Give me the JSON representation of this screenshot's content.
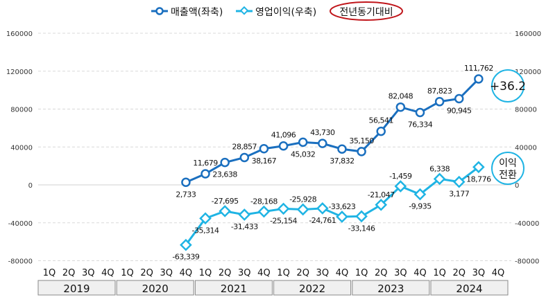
{
  "chart_data": {
    "type": "line",
    "legend": {
      "placement": "top",
      "items": [
        "매출액(좌축)",
        "영업이익(우축)",
        "전년동기대비"
      ]
    },
    "categories": [
      "1Q",
      "2Q",
      "3Q",
      "4Q",
      "1Q",
      "2Q",
      "3Q",
      "4Q",
      "1Q",
      "2Q",
      "3Q",
      "4Q",
      "1Q",
      "2Q",
      "3Q",
      "4Q",
      "1Q",
      "2Q",
      "3Q",
      "4Q",
      "1Q",
      "2Q",
      "3Q",
      "4Q"
    ],
    "years": [
      "2019",
      "2020",
      "2021",
      "2022",
      "2023",
      "2024"
    ],
    "y_left": {
      "ticks": [
        "160000",
        "120000",
        "80000",
        "40000",
        "0",
        "-40000",
        "-80000"
      ],
      "range": [
        -80000,
        160000
      ]
    },
    "y_right": {
      "ticks": [
        "160000",
        "120000",
        "80000",
        "40000",
        "0",
        "-40000",
        "-80000"
      ],
      "range": [
        -80000,
        160000
      ]
    },
    "grid": true,
    "series": [
      {
        "name": "매출액(좌축)",
        "color": "#1a6fbf",
        "marker": "circle",
        "values": [
          null,
          null,
          null,
          null,
          null,
          null,
          null,
          2733,
          11679,
          23638,
          28857,
          38167,
          41096,
          45032,
          43730,
          37832,
          35150,
          56541,
          82048,
          76334,
          87823,
          90945,
          111762,
          null
        ],
        "labels": [
          null,
          null,
          null,
          null,
          null,
          null,
          null,
          "2,733",
          "11,679",
          "23,638",
          "28,857",
          "38,167",
          "41,096",
          "45,032",
          "43,730",
          "37,832",
          "35,150",
          "56,541",
          "82,048",
          "76,334",
          "87,823",
          "90,945",
          "111,762",
          null
        ]
      },
      {
        "name": "영업이익(우축)",
        "color": "#1fb4e4",
        "marker": "diamond",
        "values": [
          null,
          null,
          null,
          null,
          null,
          null,
          null,
          -63339,
          -35314,
          -27695,
          -31433,
          -28168,
          -25154,
          -25928,
          -24761,
          -33623,
          -33146,
          -21047,
          -1459,
          -9935,
          6338,
          3177,
          18776,
          null
        ],
        "labels": [
          null,
          null,
          null,
          null,
          null,
          null,
          null,
          "-63,339",
          "-35,314",
          "-27,695",
          "-31,433",
          "-28,168",
          "-25,154",
          "-25,928",
          "-24,761",
          "-33,623",
          "-33,146",
          "-21,047",
          "-1,459",
          "-9,935",
          "6,338",
          "3,177",
          "18,776",
          null
        ]
      }
    ],
    "annotations": [
      {
        "text": "+36.2",
        "target": "매출액(좌축)"
      },
      {
        "text": "이익",
        "text2": "전환",
        "target": "영업이익(우축)"
      }
    ]
  }
}
